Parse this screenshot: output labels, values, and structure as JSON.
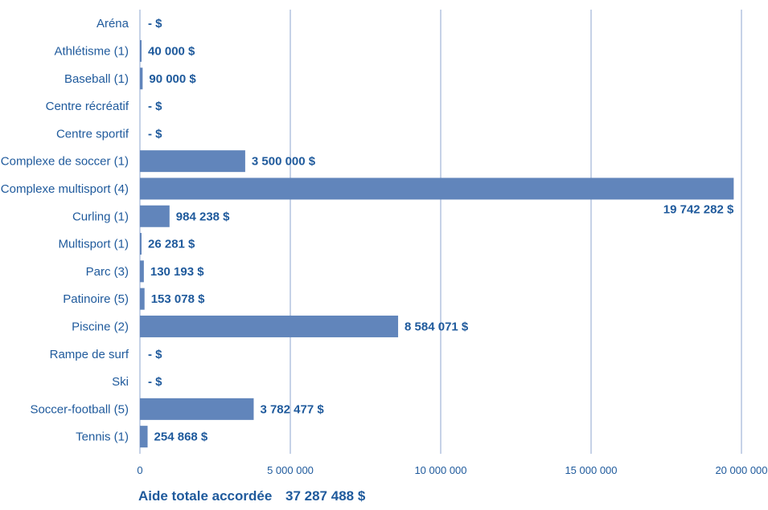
{
  "chart_data": {
    "type": "bar",
    "orientation": "horizontal",
    "categories": [
      "Aréna",
      "Athlétisme (1)",
      "Baseball (1)",
      "Centre récréatif",
      "Centre sportif",
      "Complexe de soccer (1)",
      "Complexe multisport (4)",
      "Curling (1)",
      "Multisport (1)",
      "Parc (3)",
      "Patinoire (5)",
      "Piscine (2)",
      "Rampe de surf",
      "Ski",
      "Soccer-football (5)",
      "Tennis (1)"
    ],
    "values": [
      0,
      40000,
      90000,
      0,
      0,
      3500000,
      19742282,
      984238,
      26281,
      130193,
      153078,
      8584071,
      0,
      0,
      3782477,
      254868
    ],
    "value_labels": [
      "- $",
      "40 000 $",
      "90 000 $",
      "- $",
      "- $",
      "3 500 000 $",
      "19 742 282 $",
      "984 238 $",
      "26 281 $",
      "130 193 $",
      "153 078 $",
      "8 584 071 $",
      "- $",
      "- $",
      "3 782 477 $",
      "254 868 $"
    ],
    "xlim": [
      0,
      20000000
    ],
    "xticks": [
      0,
      5000000,
      10000000,
      15000000,
      20000000
    ],
    "xtick_labels": [
      "0",
      "5 000 000",
      "10 000 000",
      "15 000 000",
      "20 000 000"
    ],
    "grid": "vertical",
    "title": "",
    "xlabel": "",
    "ylabel": "",
    "bar_color": "#6185bb",
    "grid_color": "#8ea6cf",
    "text_color": "#1f5a9c"
  },
  "total": {
    "label": "Aide totale accordée",
    "value": "37 287 488 $"
  }
}
